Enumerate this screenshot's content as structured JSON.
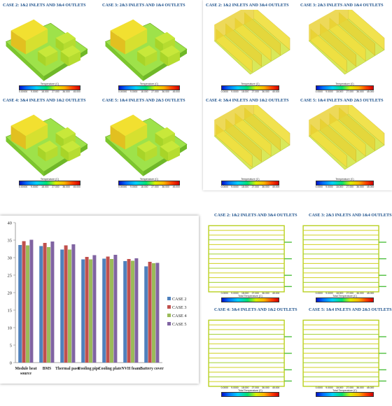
{
  "panel_top_left": {
    "cells": [
      {
        "title": "CASE 2: 1&2 INLETS AND 3&4 OUTLETS"
      },
      {
        "title": "CASE 3: 2&3 INLETS AND 1&4 OUTLETS"
      },
      {
        "title": "CASE 4: 3&4 INLETS AND 1&2 OUTLETS"
      },
      {
        "title": "CASE 5: 1&4 INLETS AND 2&3 OUTLETS"
      }
    ],
    "scale_label": "Temperature (C)",
    "scale_ticks": [
      "0.00000",
      "9.0000",
      "18.000",
      "27.000",
      "36.000",
      "45.000"
    ]
  },
  "panel_top_right": {
    "cells": [
      {
        "title": "CASE 2: 1&2 INLETS AND 3&4 OUTLETS"
      },
      {
        "title": "CASE 3: 2&3 INLETS AND 1&4 OUTLETS"
      },
      {
        "title": "CASE 4: 3&4 INLETS AND 1&2 OUTLETS"
      },
      {
        "title": "CASE 5: 1&4 INLETS AND 2&3 OUTLETS"
      }
    ],
    "scale_label": "Temperature (C)",
    "scale_ticks": [
      "0.0000",
      "9.0000",
      "18.000",
      "27.000",
      "36.000",
      "45.000"
    ]
  },
  "panel_bottom_right": {
    "cells": [
      {
        "title": "CASE 2: 1&2 INLETS AND 3&4 OUTLETS"
      },
      {
        "title": "CASE 3: 2&3 INLETS AND 1&4 OUTLETS"
      },
      {
        "title": "CASE 4: 3&4 INLETS AND 1&2 OUTLETS"
      },
      {
        "title": "CASE 5: 1&4 INLETS AND 2&3 OUTLETS"
      }
    ],
    "scale_label": "Total Temperature (C)",
    "scale_ticks": [
      "0.0000",
      "9.0000",
      "18.000",
      "27.000",
      "36.000",
      "45.000"
    ]
  },
  "chart_data": {
    "type": "bar",
    "categories": [
      "Module heat source",
      "BMS",
      "Thermal paste",
      "Cooling pipe",
      "Cooling plate",
      "NVH foam",
      "Battery cover"
    ],
    "series": [
      {
        "name": "CASE 2",
        "color": "#4f81bd",
        "values": [
          33.6,
          33.3,
          32.3,
          29.5,
          29.7,
          29.0,
          27.5
        ]
      },
      {
        "name": "CASE 3",
        "color": "#c0504d",
        "values": [
          34.7,
          34.2,
          33.5,
          30.2,
          30.3,
          29.6,
          28.8
        ]
      },
      {
        "name": "CASE 4",
        "color": "#9bbb59",
        "values": [
          33.5,
          33.0,
          32.3,
          29.5,
          29.6,
          29.1,
          28.4
        ]
      },
      {
        "name": "CASE 5",
        "color": "#8064a2",
        "values": [
          35.1,
          34.6,
          33.8,
          30.7,
          30.8,
          29.8,
          28.5
        ]
      }
    ],
    "ylim": [
      0,
      40
    ],
    "yticks": [
      "0",
      "5",
      "10",
      "15",
      "20",
      "25",
      "30",
      "35",
      "40"
    ],
    "grid": false,
    "legend_position": "right"
  }
}
